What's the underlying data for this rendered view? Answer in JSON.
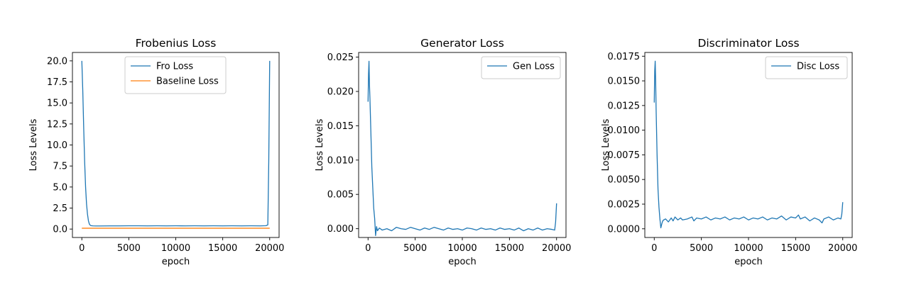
{
  "chart_data": [
    {
      "type": "line",
      "title": "Frobenius Loss",
      "xlabel": "epoch",
      "ylabel": "Loss Levels",
      "xlim": [
        -1000,
        21000
      ],
      "ylim": [
        -1.0,
        21.0
      ],
      "xticks": [
        0,
        5000,
        10000,
        15000,
        20000
      ],
      "xtick_labels": [
        "0",
        "5000",
        "10000",
        "15000",
        "20000"
      ],
      "yticks": [
        0.0,
        2.5,
        5.0,
        7.5,
        10.0,
        12.5,
        15.0,
        17.5,
        20.0
      ],
      "ytick_labels": [
        "0.0",
        "2.5",
        "5.0",
        "7.5",
        "10.0",
        "12.5",
        "15.0",
        "17.5",
        "20.0"
      ],
      "legend": "top-center",
      "series": [
        {
          "name": "Fro Loss",
          "color": "#1f77b4",
          "x": [
            0,
            100,
            200,
            300,
            400,
            500,
            600,
            700,
            800,
            900,
            1000,
            1200,
            1500,
            2000,
            3000,
            4000,
            5000,
            6000,
            7000,
            8000,
            9000,
            10000,
            11000,
            12000,
            13000,
            14000,
            15000,
            16000,
            17000,
            18000,
            19000,
            19600,
            19800,
            19900,
            20000
          ],
          "y": [
            20.0,
            16.5,
            12.0,
            8.0,
            5.0,
            3.0,
            1.8,
            1.0,
            0.6,
            0.45,
            0.4,
            0.38,
            0.37,
            0.37,
            0.38,
            0.38,
            0.39,
            0.39,
            0.38,
            0.39,
            0.38,
            0.39,
            0.38,
            0.39,
            0.38,
            0.39,
            0.38,
            0.39,
            0.38,
            0.39,
            0.38,
            0.4,
            0.5,
            8.0,
            20.0
          ]
        },
        {
          "name": "Baseline Loss",
          "color": "#ff7f0e",
          "x": [
            0,
            20000
          ],
          "y": [
            0.1,
            0.1
          ]
        }
      ]
    },
    {
      "type": "line",
      "title": "Generator Loss",
      "xlabel": "epoch",
      "ylabel": "Loss Levels",
      "xlim": [
        -1000,
        21000
      ],
      "ylim": [
        -0.00128,
        0.02568
      ],
      "xticks": [
        0,
        5000,
        10000,
        15000,
        20000
      ],
      "xtick_labels": [
        "0",
        "5000",
        "10000",
        "15000",
        "20000"
      ],
      "yticks": [
        0.0,
        0.005,
        0.01,
        0.015,
        0.02,
        0.025
      ],
      "ytick_labels": [
        "0.000",
        "0.005",
        "0.010",
        "0.015",
        "0.020",
        "0.025"
      ],
      "legend": "top-right",
      "series": [
        {
          "name": "Gen Loss",
          "color": "#1f77b4",
          "x": [
            0,
            50,
            100,
            150,
            200,
            300,
            400,
            500,
            600,
            700,
            800,
            900,
            1000,
            1200,
            1500,
            2000,
            2500,
            3000,
            3500,
            4000,
            4500,
            5000,
            5500,
            6000,
            6500,
            7000,
            7500,
            8000,
            8500,
            9000,
            9500,
            10000,
            10500,
            11000,
            11500,
            12000,
            12500,
            13000,
            13500,
            14000,
            14500,
            15000,
            15500,
            16000,
            16500,
            17000,
            17500,
            18000,
            18500,
            19000,
            19500,
            19800,
            19900,
            20000
          ],
          "y": [
            0.0185,
            0.0225,
            0.0244,
            0.021,
            0.019,
            0.014,
            0.009,
            0.006,
            0.003,
            0.0015,
            -0.001,
            0.0003,
            -0.0003,
            0.0001,
            -0.0002,
            0.0,
            -0.0003,
            0.0002,
            0.0,
            -0.0001,
            0.0002,
            0.0,
            -0.0002,
            0.0001,
            -0.0001,
            0.0002,
            0.0,
            -0.0002,
            0.0001,
            -0.0001,
            0.0,
            -0.0002,
            0.0001,
            0.0,
            -0.0002,
            0.0001,
            -0.0001,
            0.0,
            -0.0002,
            0.0001,
            -0.0001,
            0.0,
            -0.0002,
            0.0001,
            -0.0003,
            0.0,
            -0.0002,
            0.0001,
            -0.0002,
            0.0,
            -0.0001,
            -0.0002,
            0.001,
            0.0037
          ]
        }
      ]
    },
    {
      "type": "line",
      "title": "Discriminator Loss",
      "xlabel": "epoch",
      "ylabel": "Loss Levels",
      "xlim": [
        -1000,
        21000
      ],
      "ylim": [
        -0.00088,
        0.01788
      ],
      "xticks": [
        0,
        5000,
        10000,
        15000,
        20000
      ],
      "xtick_labels": [
        "0",
        "5000",
        "10000",
        "15000",
        "20000"
      ],
      "yticks": [
        0.0,
        0.0025,
        0.005,
        0.0075,
        0.01,
        0.0125,
        0.015,
        0.0175
      ],
      "ytick_labels": [
        "0.0000",
        "0.0025",
        "0.0050",
        "0.0075",
        "0.0100",
        "0.0125",
        "0.0150",
        "0.0175"
      ],
      "legend": "top-right",
      "series": [
        {
          "name": "Disc Loss",
          "color": "#1f77b4",
          "x": [
            0,
            50,
            100,
            150,
            200,
            300,
            400,
            500,
            600,
            700,
            800,
            900,
            1000,
            1200,
            1500,
            1800,
            2000,
            2200,
            2500,
            2800,
            3000,
            3500,
            4000,
            4200,
            4500,
            5000,
            5500,
            6000,
            6500,
            7000,
            7500,
            8000,
            8500,
            9000,
            9500,
            10000,
            10500,
            11000,
            11500,
            12000,
            12500,
            13000,
            13500,
            14000,
            14500,
            15000,
            15300,
            15500,
            16000,
            16500,
            17000,
            17500,
            17800,
            18000,
            18500,
            19000,
            19500,
            19800,
            19900,
            20000
          ],
          "y": [
            0.0128,
            0.016,
            0.017,
            0.015,
            0.012,
            0.0075,
            0.004,
            0.0022,
            0.001,
            0.0001,
            0.0005,
            0.0008,
            0.0009,
            0.001,
            0.0007,
            0.0011,
            0.0008,
            0.0012,
            0.0009,
            0.0011,
            0.0009,
            0.001,
            0.0012,
            0.0008,
            0.0011,
            0.001,
            0.0012,
            0.0009,
            0.0011,
            0.001,
            0.0012,
            0.0009,
            0.0011,
            0.001,
            0.0012,
            0.0009,
            0.0011,
            0.001,
            0.0012,
            0.0009,
            0.0011,
            0.001,
            0.0013,
            0.0009,
            0.0012,
            0.0011,
            0.0014,
            0.001,
            0.0012,
            0.0008,
            0.0011,
            0.0009,
            0.0006,
            0.001,
            0.0012,
            0.0009,
            0.0011,
            0.001,
            0.0015,
            0.0027
          ]
        }
      ]
    }
  ]
}
